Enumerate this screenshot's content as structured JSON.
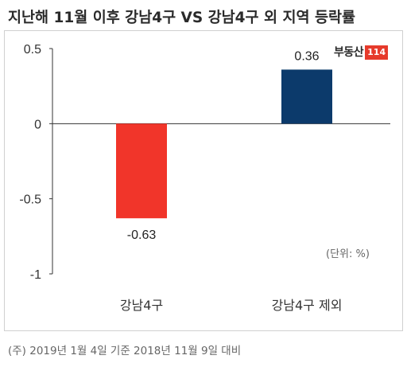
{
  "title": "지난해 11월 이후 강남4구 VS 강남4구 외 지역 등락률",
  "unit_note": "(단위: %)",
  "logo": {
    "text": "부동산",
    "badge": "114"
  },
  "footnote": "(주) 2019년 1월 4일 기준 2018년 11월 9일 대비",
  "colors": {
    "negative_bar": "#f1352a",
    "positive_bar": "#0c3a6b",
    "axis": "#333333"
  },
  "chart_data": {
    "type": "bar",
    "title": "지난해 11월 이후 강남4구 VS 강남4구 외 지역 등락률",
    "categories": [
      "강남4구",
      "강남4구 제외"
    ],
    "values": [
      -0.63,
      0.36
    ],
    "data_labels": [
      "-0.63",
      "0.36"
    ],
    "yticks": [
      "0.5",
      "0",
      "-0.5",
      "-1"
    ],
    "ytick_values": [
      0.5,
      0,
      -0.5,
      -1
    ],
    "ylim": [
      -1,
      0.5
    ],
    "xlabel": "",
    "ylabel": "",
    "grid": false,
    "legend": "none"
  }
}
